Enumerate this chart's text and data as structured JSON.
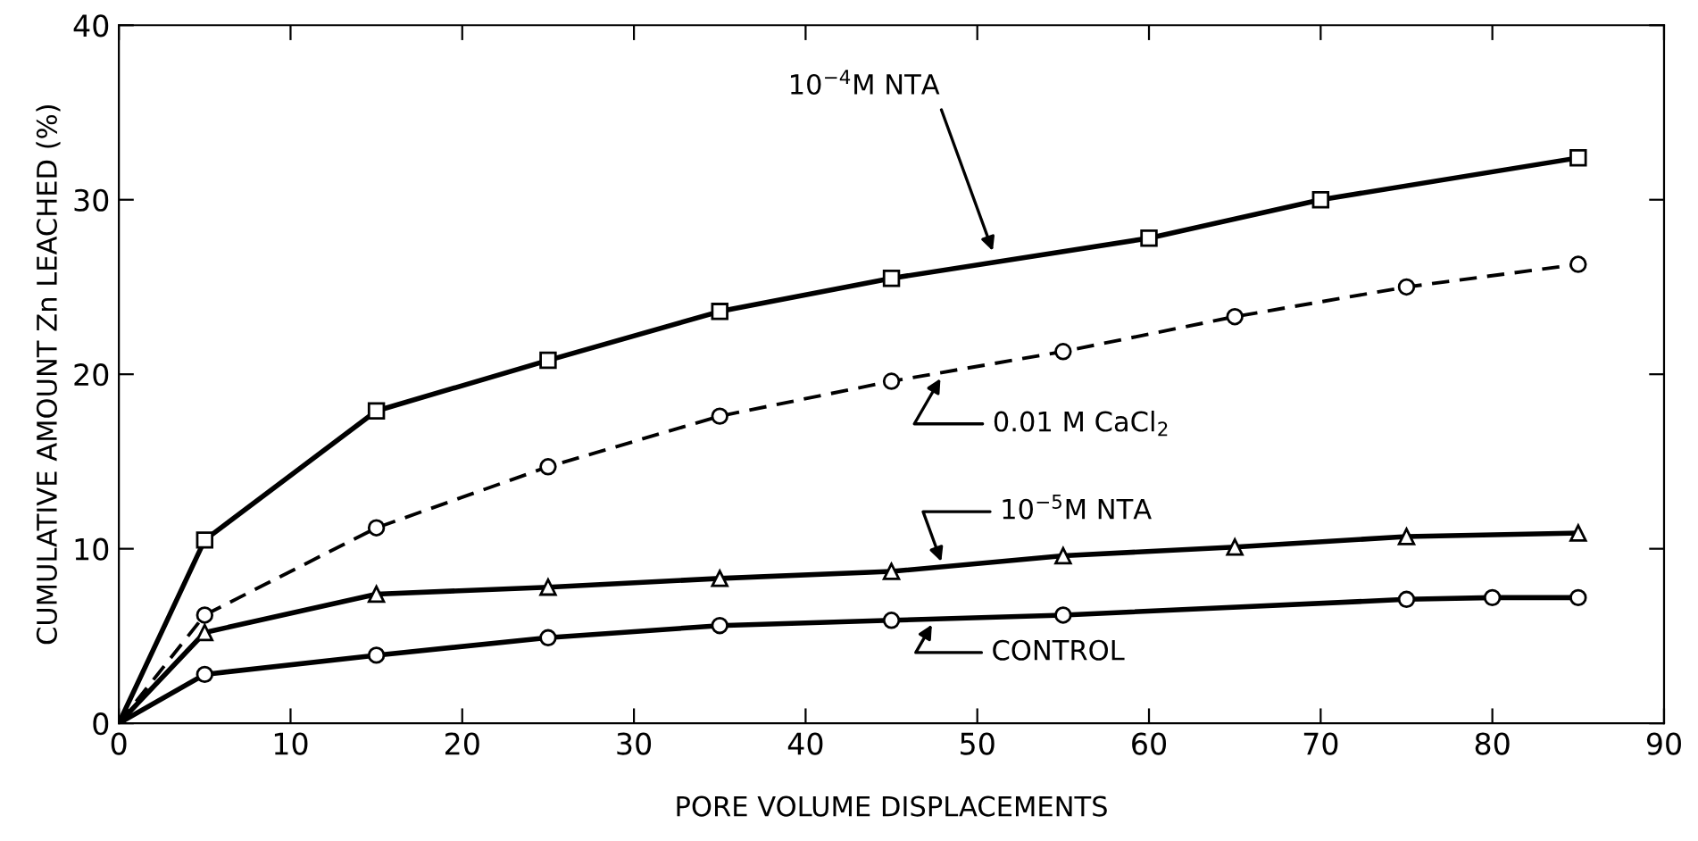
{
  "chart_data": {
    "type": "line",
    "xlabel": "PORE VOLUME DISPLACEMENTS",
    "ylabel": "CUMULATIVE AMOUNT Zn LEACHED (%)",
    "xlim": [
      0,
      90
    ],
    "xticks": [
      0,
      10,
      20,
      30,
      40,
      50,
      60,
      70,
      80,
      90
    ],
    "ylim": [
      0,
      40
    ],
    "yticks": [
      0,
      10,
      20,
      30,
      40
    ],
    "grid": false,
    "legend": false,
    "series": [
      {
        "color": "#000000",
        "marker": "square",
        "line_style": "solid",
        "x": [
          0,
          5,
          15,
          25,
          35,
          45,
          60,
          70,
          85
        ],
        "values": [
          0,
          10.5,
          17.9,
          20.8,
          23.6,
          25.5,
          27.8,
          30.0,
          32.4
        ]
      },
      {
        "color": "#000000",
        "marker": "circle",
        "line_style": "dashed",
        "x": [
          0,
          5,
          15,
          25,
          35,
          45,
          55,
          65,
          75,
          85
        ],
        "values": [
          0,
          6.2,
          11.2,
          14.7,
          17.6,
          19.6,
          21.3,
          23.3,
          25.0,
          26.3
        ]
      },
      {
        "color": "#000000",
        "marker": "triangle",
        "line_style": "solid",
        "x": [
          0,
          5,
          15,
          25,
          35,
          45,
          55,
          65,
          75,
          85
        ],
        "values": [
          0,
          5.2,
          7.4,
          7.8,
          8.3,
          8.7,
          9.6,
          10.1,
          10.7,
          10.9
        ]
      },
      {
        "color": "#000000",
        "marker": "circle",
        "line_style": "solid",
        "x": [
          0,
          5,
          15,
          25,
          35,
          45,
          55,
          75,
          80,
          85
        ],
        "values": [
          0,
          2.8,
          3.9,
          4.9,
          5.6,
          5.9,
          6.2,
          7.1,
          7.2,
          7.2
        ]
      }
    ],
    "annotations": [
      {
        "text": "10$^{−4}$M NTA",
        "x": 51,
        "y": 26.8
      },
      {
        "text": "0.01 M CaCl$_{2}$",
        "x": 48,
        "y": 20.0
      },
      {
        "text": "10$^{−5}$M NTA",
        "x": 48,
        "y": 9.0
      },
      {
        "text": "CONTROL",
        "x": 47.5,
        "y": 5.9
      }
    ]
  }
}
